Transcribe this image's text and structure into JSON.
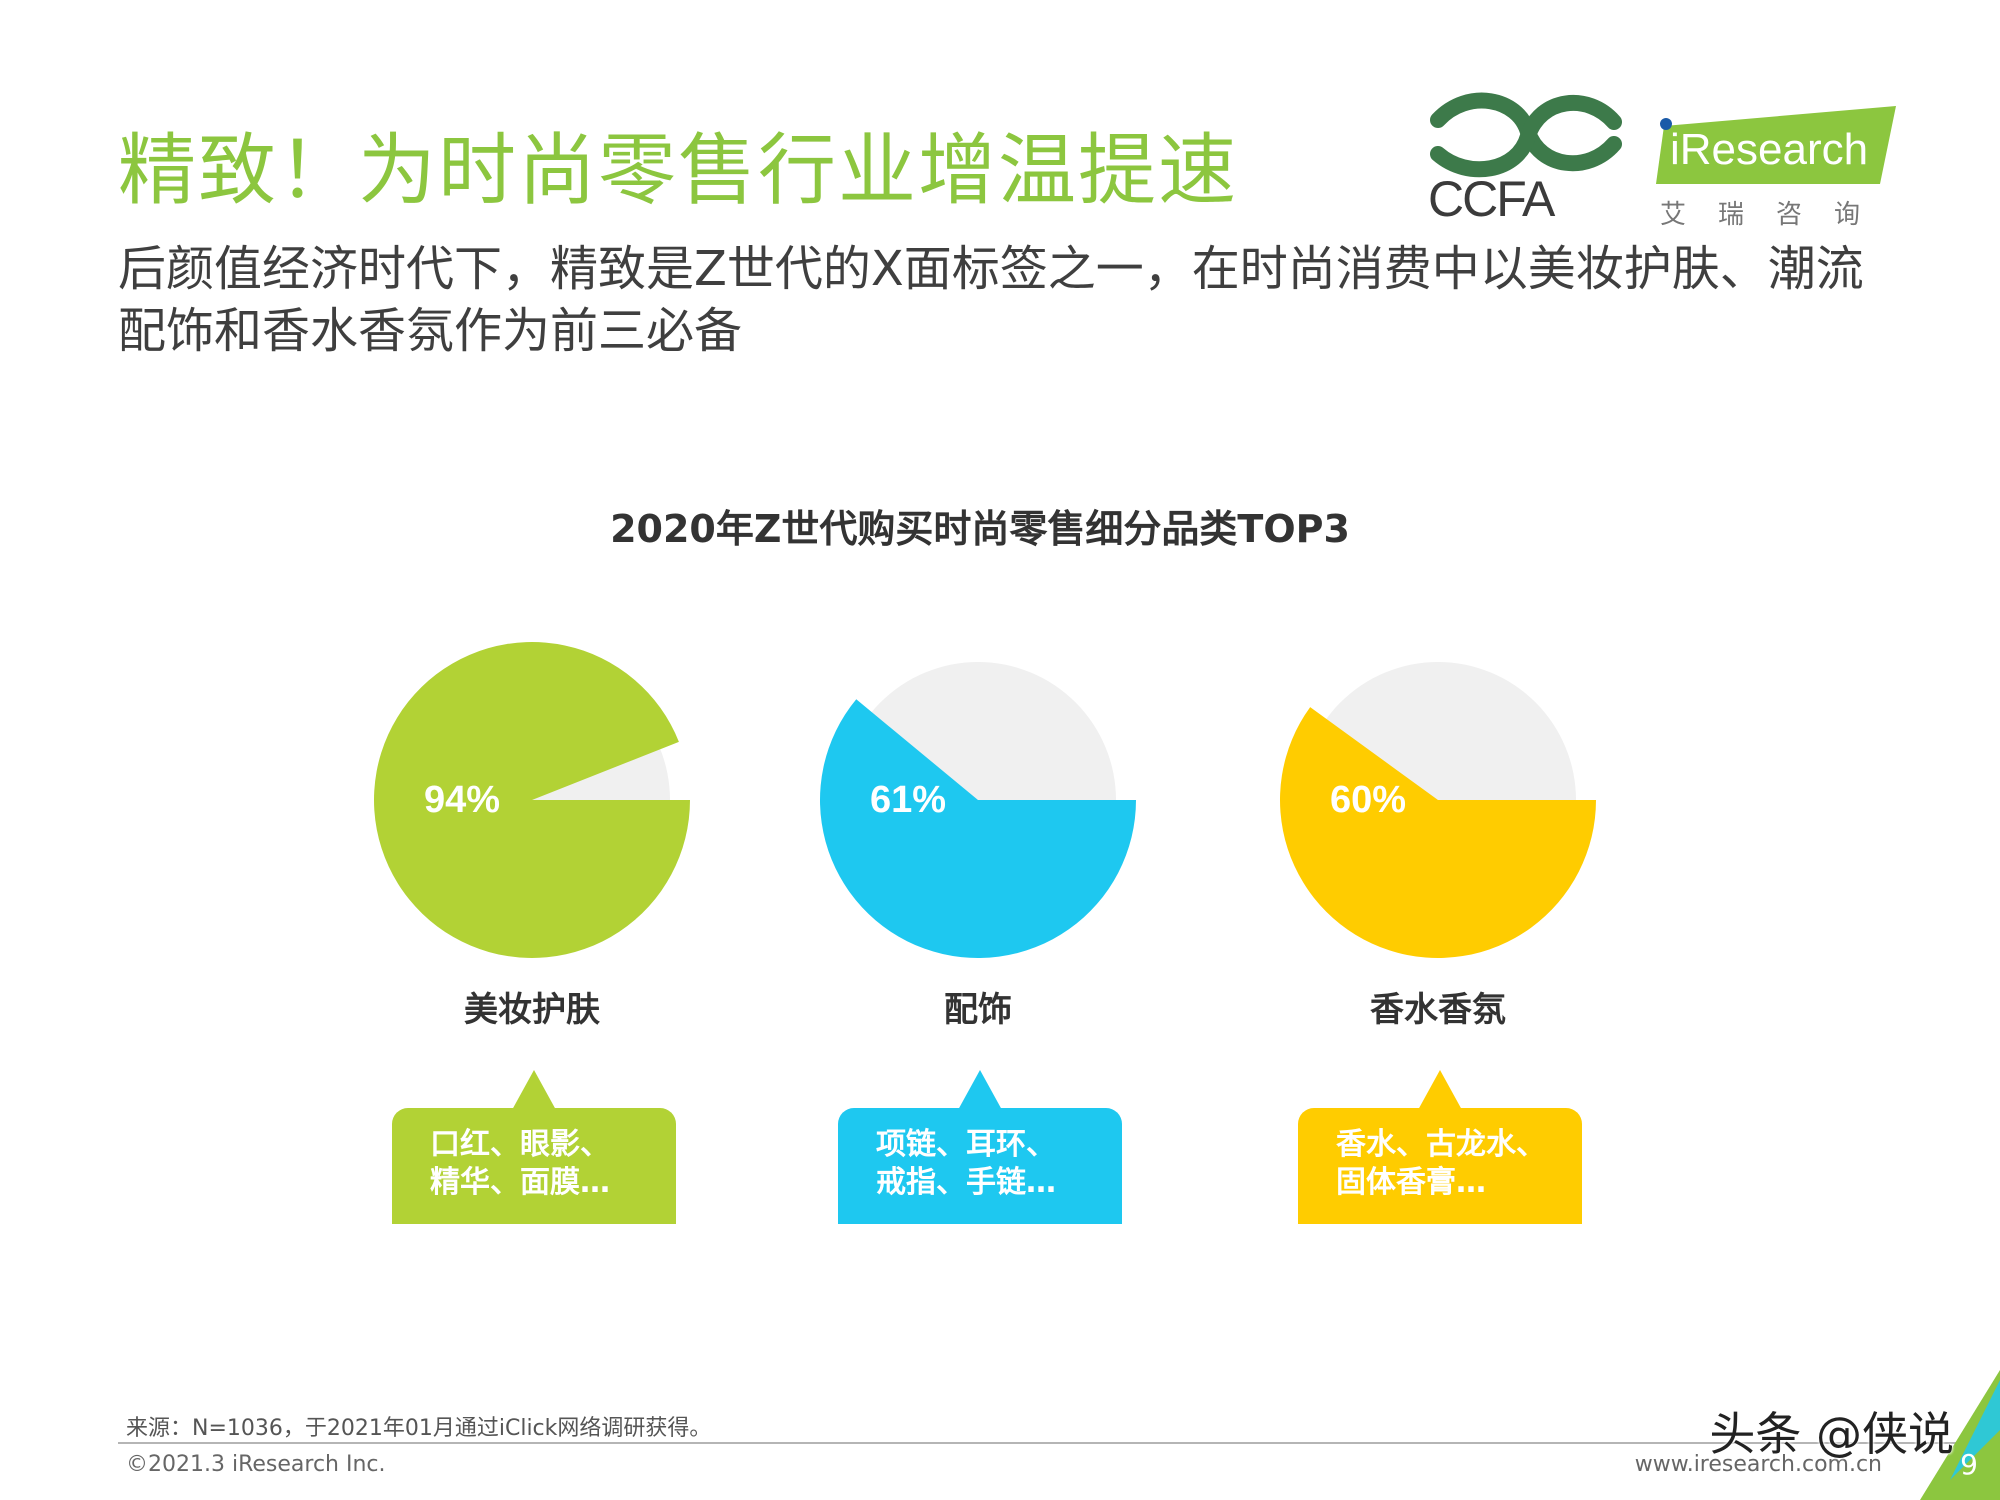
{
  "slide": {
    "title": "精致！为时尚零售行业增温提速",
    "subtitle": "后颜值经济时代下，精致是Z世代的X面标签之一，在时尚消费中以美妆护肤、潮流配饰和香水香氛作为前三必备"
  },
  "logos": {
    "ccfa_text": "CCFA",
    "iresearch_text": "iResearch",
    "iresearch_cn": "艾瑞咨询"
  },
  "chart_data": {
    "type": "pie",
    "title": "2020年Z世代购买时尚零售细分品类TOP3",
    "series": [
      {
        "category": "美妆护肤",
        "value": 94,
        "value_label": "94%",
        "color": "#B2D235",
        "examples": [
          "口红、眼影、",
          "精华、面膜…"
        ]
      },
      {
        "category": "配饰",
        "value": 61,
        "value_label": "61%",
        "color": "#1EC8F0",
        "examples": [
          "项链、耳环、",
          "戒指、手链…"
        ]
      },
      {
        "category": "香水香氛",
        "value": 60,
        "value_label": "60%",
        "color": "#FFCC00",
        "examples": [
          "香水、古龙水、",
          "固体香膏…"
        ]
      }
    ],
    "remainder_color": "#F0F0F0",
    "grid": false,
    "legend": "none"
  },
  "footer": {
    "source": "来源：N=1036，于2021年01月通过iClick网络调研获得。",
    "copyright": "©2021.3 iResearch Inc.",
    "website": "www.iresearch.com.cn",
    "page_number": "9",
    "watermark": "头条 @侠说"
  },
  "colors": {
    "title_green": "#8CC63F",
    "corner_green": "#8CC63F",
    "corner_blue": "#1EC8F0"
  }
}
